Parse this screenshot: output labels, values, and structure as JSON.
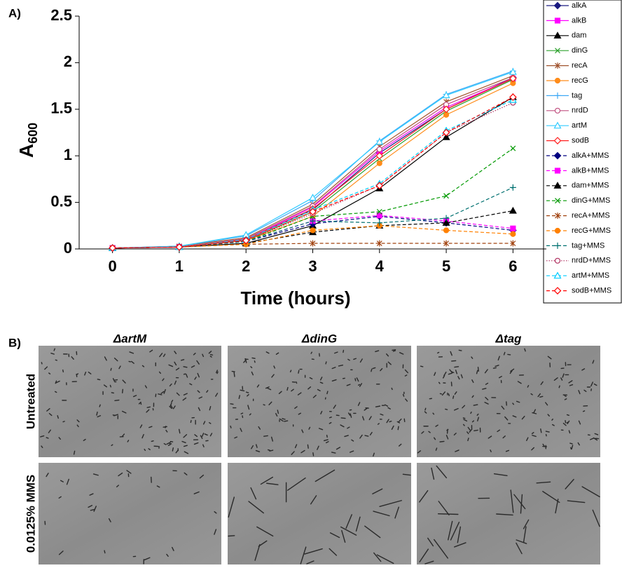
{
  "panel_a": {
    "label": "A)"
  },
  "chart_data": {
    "type": "line",
    "xlabel": "Time (hours)",
    "ylabel": "A",
    "ylabel_subscript": "600",
    "x": [
      0,
      1,
      2,
      3,
      4,
      5,
      6
    ],
    "xlim": [
      -0.5,
      6.5
    ],
    "xticks": [
      0,
      1,
      2,
      3,
      4,
      5,
      6
    ],
    "ylim": [
      0,
      2.5
    ],
    "yticks": [
      0,
      0.5,
      1,
      1.5,
      2,
      2.5
    ],
    "grid": false,
    "legend": "right",
    "series": [
      {
        "name": "alkA",
        "color": "#1a1a80",
        "dash": "solid",
        "marker": "diamond",
        "values": [
          0.01,
          0.02,
          0.1,
          0.42,
          1.03,
          1.5,
          1.84
        ]
      },
      {
        "name": "alkB",
        "color": "#ff00ff",
        "dash": "solid",
        "marker": "square",
        "values": [
          0.01,
          0.02,
          0.1,
          0.45,
          1.05,
          1.52,
          1.83
        ]
      },
      {
        "name": "dam",
        "color": "#000000",
        "dash": "solid",
        "marker": "triangle",
        "values": [
          0.01,
          0.02,
          0.06,
          0.25,
          0.65,
          1.2,
          1.63
        ]
      },
      {
        "name": "dinG",
        "color": "#2ca02c",
        "dash": "solid",
        "marker": "x",
        "values": [
          0.01,
          0.02,
          0.09,
          0.4,
          0.97,
          1.48,
          1.82
        ]
      },
      {
        "name": "recA",
        "color": "#a0522d",
        "dash": "solid",
        "marker": "star",
        "values": [
          0.01,
          0.03,
          0.12,
          0.48,
          1.1,
          1.58,
          1.86
        ]
      },
      {
        "name": "recG",
        "color": "#ff8c1a",
        "dash": "solid",
        "marker": "circle",
        "values": [
          0.01,
          0.02,
          0.09,
          0.35,
          0.92,
          1.44,
          1.78
        ]
      },
      {
        "name": "tag",
        "color": "#3fa9f5",
        "dash": "solid",
        "marker": "plus",
        "values": [
          0.01,
          0.03,
          0.14,
          0.52,
          1.16,
          1.66,
          1.91
        ]
      },
      {
        "name": "nrdD",
        "color": "#c05080",
        "dash": "solid",
        "marker": "open-circle",
        "values": [
          0.01,
          0.02,
          0.11,
          0.46,
          1.07,
          1.55,
          1.84
        ]
      },
      {
        "name": "artM",
        "color": "#33ccff",
        "dash": "solid",
        "marker": "open-triangle",
        "values": [
          0.01,
          0.03,
          0.15,
          0.55,
          1.15,
          1.65,
          1.9
        ]
      },
      {
        "name": "sodB",
        "color": "#ff2020",
        "dash": "solid",
        "marker": "open-diamond",
        "values": [
          0.01,
          0.02,
          0.1,
          0.43,
          1.0,
          1.5,
          1.83
        ]
      },
      {
        "name": "alkA+MMS",
        "color": "#000080",
        "dash": "dashed",
        "marker": "diamond",
        "values": [
          0.01,
          0.02,
          0.08,
          0.27,
          0.35,
          0.28,
          0.2
        ]
      },
      {
        "name": "alkB+MMS",
        "color": "#ff00ff",
        "dash": "dashed",
        "marker": "square",
        "values": [
          0.01,
          0.02,
          0.08,
          0.3,
          0.36,
          0.3,
          0.22
        ]
      },
      {
        "name": "dam+MMS",
        "color": "#000000",
        "dash": "dashed",
        "marker": "triangle",
        "values": [
          0.01,
          0.02,
          0.06,
          0.18,
          0.25,
          0.28,
          0.41
        ]
      },
      {
        "name": "dinG+MMS",
        "color": "#009900",
        "dash": "dashed",
        "marker": "x",
        "values": [
          0.01,
          0.02,
          0.08,
          0.35,
          0.4,
          0.57,
          1.08
        ]
      },
      {
        "name": "recA+MMS",
        "color": "#a0410d",
        "dash": "dashed",
        "marker": "star",
        "values": [
          0.01,
          0.02,
          0.05,
          0.06,
          0.06,
          0.06,
          0.06
        ]
      },
      {
        "name": "recG+MMS",
        "color": "#ff8000",
        "dash": "dashed",
        "marker": "circle",
        "values": [
          0.01,
          0.02,
          0.05,
          0.2,
          0.25,
          0.2,
          0.16
        ]
      },
      {
        "name": "tag+MMS",
        "color": "#007070",
        "dash": "dashed",
        "marker": "plus",
        "values": [
          0.01,
          0.02,
          0.08,
          0.3,
          0.28,
          0.33,
          0.66
        ]
      },
      {
        "name": "nrdD+MMS",
        "color": "#b03060",
        "dash": "dotted",
        "marker": "open-circle",
        "values": [
          0.01,
          0.02,
          0.09,
          0.38,
          0.68,
          1.25,
          1.57
        ]
      },
      {
        "name": "artM+MMS",
        "color": "#00ccff",
        "dash": "dashed",
        "marker": "open-triangle",
        "values": [
          0.01,
          0.02,
          0.1,
          0.42,
          0.7,
          1.27,
          1.6
        ]
      },
      {
        "name": "sodB+MMS",
        "color": "#ff0000",
        "dash": "dashed",
        "marker": "open-diamond",
        "values": [
          0.01,
          0.02,
          0.09,
          0.4,
          0.68,
          1.25,
          1.63
        ]
      }
    ]
  },
  "panel_b": {
    "label": "B)",
    "columns": [
      "ΔartM",
      "ΔdinG",
      "Δtag"
    ],
    "rows": [
      "Untreated",
      "0.0125% MMS"
    ]
  }
}
